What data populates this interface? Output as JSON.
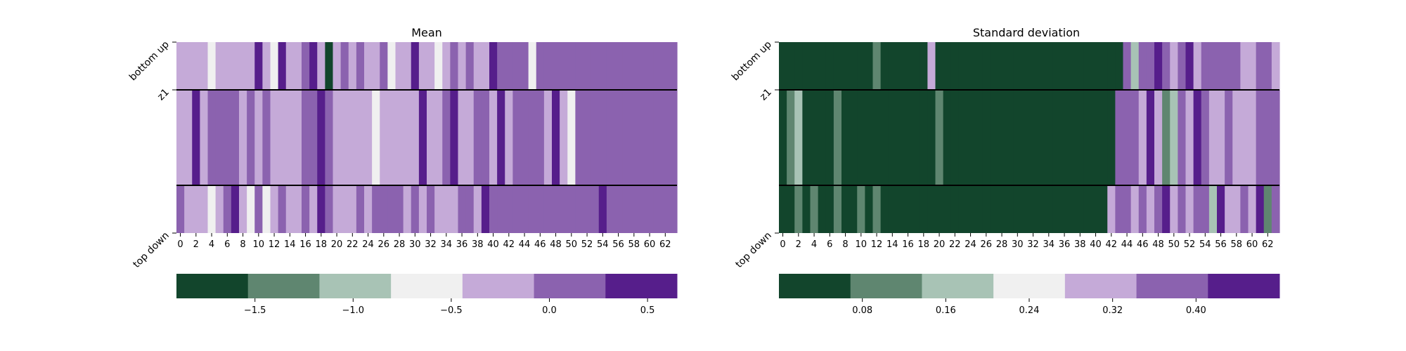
{
  "chart_data": [
    {
      "type": "heatmap",
      "title": "Mean",
      "rows": [
        "bottom up",
        "z1",
        "top down"
      ],
      "columns": 64,
      "x_tick_labels": [
        "0",
        "2",
        "4",
        "6",
        "8",
        "10",
        "12",
        "14",
        "16",
        "18",
        "20",
        "22",
        "24",
        "26",
        "28",
        "30",
        "32",
        "34",
        "36",
        "38",
        "40",
        "42",
        "44",
        "46",
        "48",
        "50",
        "52",
        "54",
        "56",
        "58",
        "60",
        "62"
      ],
      "colorbar": {
        "orientation": "horizontal",
        "range": [
          -1.9,
          0.65
        ],
        "tick_labels": [
          "−1.5",
          "−1.0",
          "−0.5",
          "0.0",
          "0.5"
        ],
        "tick_values": [
          -1.5,
          -1.0,
          -0.5,
          0.0,
          0.5
        ],
        "bins": 7,
        "colors": [
          "#12452c",
          "#5f8670",
          "#a8c3b5",
          "#f0f0f0",
          "#c5aad8",
          "#8b62af",
          "#561e8b"
        ]
      },
      "cell_level_scale": "0 = darkest green … 6 = darkest purple (colorbar bin index)",
      "values": [
        [
          4,
          4,
          4,
          4,
          3,
          4,
          4,
          4,
          4,
          4,
          6,
          4,
          3,
          6,
          4,
          4,
          5,
          6,
          4,
          0,
          4,
          5,
          4,
          5,
          4,
          4,
          5,
          3,
          4,
          4,
          6,
          4,
          4,
          3,
          4,
          5,
          4,
          5,
          4,
          4,
          6,
          5,
          5,
          5,
          5,
          3,
          5,
          5,
          5,
          5,
          5,
          5,
          5,
          5,
          5,
          5,
          5,
          5,
          5,
          5,
          5,
          5,
          5,
          5
        ],
        [
          4,
          4,
          6,
          4,
          5,
          5,
          5,
          5,
          4,
          5,
          4,
          5,
          4,
          4,
          4,
          4,
          5,
          5,
          6,
          5,
          4,
          4,
          4,
          4,
          4,
          3,
          4,
          4,
          4,
          4,
          4,
          6,
          4,
          4,
          5,
          6,
          4,
          4,
          5,
          5,
          4,
          6,
          4,
          5,
          5,
          5,
          5,
          4,
          6,
          4,
          3,
          5,
          5,
          5,
          5,
          5,
          5,
          5,
          5,
          5,
          5,
          5,
          5,
          5
        ],
        [
          5,
          4,
          4,
          4,
          3,
          4,
          5,
          6,
          4,
          3,
          5,
          3,
          4,
          5,
          4,
          4,
          5,
          4,
          6,
          5,
          4,
          4,
          4,
          5,
          4,
          5,
          5,
          5,
          5,
          4,
          5,
          4,
          5,
          4,
          4,
          4,
          5,
          5,
          4,
          6,
          5,
          5,
          5,
          5,
          5,
          5,
          5,
          5,
          5,
          5,
          5,
          5,
          5,
          5,
          6,
          5,
          5,
          5,
          5,
          5,
          5,
          5,
          5,
          5
        ]
      ]
    },
    {
      "type": "heatmap",
      "title": "Standard deviation",
      "rows": [
        "bottom up",
        "z1",
        "top down"
      ],
      "columns": 64,
      "x_tick_labels": [
        "0",
        "2",
        "4",
        "6",
        "8",
        "10",
        "12",
        "14",
        "16",
        "18",
        "20",
        "22",
        "24",
        "26",
        "28",
        "30",
        "32",
        "34",
        "36",
        "38",
        "40",
        "42",
        "44",
        "46",
        "48",
        "50",
        "52",
        "54",
        "56",
        "58",
        "60",
        "62"
      ],
      "colorbar": {
        "orientation": "horizontal",
        "range": [
          0.0,
          0.48
        ],
        "tick_labels": [
          "0.08",
          "0.16",
          "0.24",
          "0.32",
          "0.40"
        ],
        "tick_values": [
          0.08,
          0.16,
          0.24,
          0.32,
          0.4
        ],
        "bins": 7,
        "colors": [
          "#12452c",
          "#5f8670",
          "#a8c3b5",
          "#f0f0f0",
          "#c5aad8",
          "#8b62af",
          "#561e8b"
        ]
      },
      "cell_level_scale": "0 = darkest green … 6 = darkest purple (colorbar bin index)",
      "values": [
        [
          0,
          0,
          0,
          0,
          0,
          0,
          0,
          0,
          0,
          0,
          0,
          0,
          1,
          0,
          0,
          0,
          0,
          0,
          0,
          4,
          0,
          0,
          0,
          0,
          0,
          0,
          0,
          0,
          0,
          0,
          0,
          0,
          0,
          0,
          0,
          0,
          0,
          0,
          0,
          0,
          0,
          0,
          0,
          0,
          5,
          2,
          5,
          5,
          6,
          5,
          4,
          5,
          6,
          4,
          5,
          5,
          5,
          5,
          5,
          4,
          4,
          5,
          5,
          4
        ],
        [
          0,
          1,
          2,
          0,
          0,
          0,
          0,
          1,
          0,
          0,
          0,
          0,
          0,
          0,
          0,
          0,
          0,
          0,
          0,
          0,
          1,
          0,
          0,
          0,
          0,
          0,
          0,
          0,
          0,
          0,
          0,
          0,
          0,
          0,
          0,
          0,
          0,
          0,
          0,
          0,
          0,
          0,
          0,
          5,
          5,
          5,
          4,
          6,
          4,
          1,
          2,
          5,
          4,
          6,
          5,
          4,
          4,
          5,
          4,
          4,
          4,
          5,
          5,
          5
        ],
        [
          0,
          0,
          1,
          0,
          1,
          0,
          0,
          1,
          0,
          0,
          1,
          0,
          1,
          0,
          0,
          0,
          0,
          0,
          0,
          0,
          0,
          0,
          0,
          0,
          0,
          0,
          0,
          0,
          0,
          0,
          0,
          0,
          0,
          0,
          0,
          0,
          0,
          0,
          0,
          0,
          0,
          0,
          4,
          5,
          5,
          4,
          5,
          4,
          5,
          6,
          4,
          5,
          4,
          5,
          5,
          2,
          6,
          4,
          4,
          5,
          4,
          6,
          1,
          5
        ]
      ]
    }
  ]
}
